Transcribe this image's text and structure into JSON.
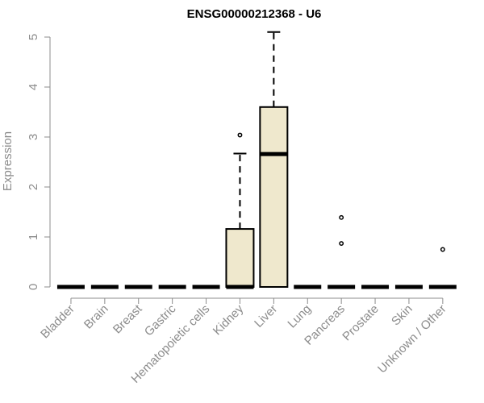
{
  "chart_data": {
    "type": "box",
    "title": "ENSG00000212368 - U6",
    "xlabel": "",
    "ylabel": "Expression",
    "ylim": [
      0,
      5
    ],
    "yticks": [
      0,
      1,
      2,
      3,
      4,
      5
    ],
    "grid": false,
    "colors": {
      "box_fill": "#efe8cd",
      "box_stroke": "#000000",
      "axis": "#8c8c8c"
    },
    "categories": [
      "Bladder",
      "Brain",
      "Breast",
      "Gastric",
      "Hematopoietic cells",
      "Kidney",
      "Liver",
      "Lung",
      "Pancreas",
      "Prostate",
      "Skin",
      "Unknown / Other"
    ],
    "boxes": [
      {
        "category": "Bladder",
        "min": 0,
        "q1": 0,
        "median": 0,
        "q3": 0,
        "max": 0,
        "outliers": []
      },
      {
        "category": "Brain",
        "min": 0,
        "q1": 0,
        "median": 0,
        "q3": 0,
        "max": 0,
        "outliers": []
      },
      {
        "category": "Breast",
        "min": 0,
        "q1": 0,
        "median": 0,
        "q3": 0,
        "max": 0,
        "outliers": []
      },
      {
        "category": "Gastric",
        "min": 0,
        "q1": 0,
        "median": 0,
        "q3": 0,
        "max": 0,
        "outliers": []
      },
      {
        "category": "Hematopoietic cells",
        "min": 0,
        "q1": 0,
        "median": 0,
        "q3": 0,
        "max": 0,
        "outliers": []
      },
      {
        "category": "Kidney",
        "min": 0,
        "q1": 0,
        "median": 0,
        "q3": 1.16,
        "max": 2.67,
        "outliers": [
          3.04
        ]
      },
      {
        "category": "Liver",
        "min": 0,
        "q1": 0,
        "median": 2.66,
        "q3": 3.6,
        "max": 5.1,
        "outliers": []
      },
      {
        "category": "Lung",
        "min": 0,
        "q1": 0,
        "median": 0,
        "q3": 0,
        "max": 0,
        "outliers": []
      },
      {
        "category": "Pancreas",
        "min": 0,
        "q1": 0,
        "median": 0,
        "q3": 0,
        "max": 0,
        "outliers": [
          1.39,
          0.87
        ]
      },
      {
        "category": "Prostate",
        "min": 0,
        "q1": 0,
        "median": 0,
        "q3": 0,
        "max": 0,
        "outliers": []
      },
      {
        "category": "Skin",
        "min": 0,
        "q1": 0,
        "median": 0,
        "q3": 0,
        "max": 0,
        "outliers": []
      },
      {
        "category": "Unknown / Other",
        "min": 0,
        "q1": 0,
        "median": 0,
        "q3": 0,
        "max": 0,
        "outliers": [
          0.75
        ]
      }
    ]
  }
}
